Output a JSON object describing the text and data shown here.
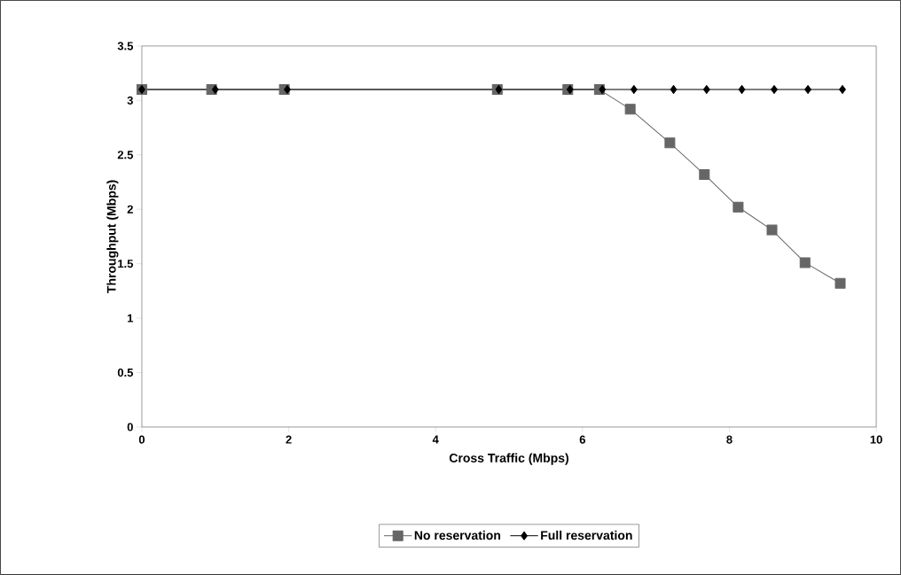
{
  "chart_data": {
    "type": "line",
    "xlabel": "Cross Traffic (Mbps)",
    "ylabel": "Throughput (Mbps)",
    "xlim": [
      0,
      10
    ],
    "xticks": [
      0,
      2,
      4,
      6,
      8,
      10
    ],
    "ylim": [
      0,
      3.5
    ],
    "yticks": [
      0,
      0.5,
      1,
      1.5,
      2,
      2.5,
      3,
      3.5
    ],
    "grid": false,
    "legend": "bottom",
    "line_style": "solid",
    "series": [
      {
        "name": "No reservation",
        "color": "#666666",
        "marker": "square",
        "x": [
          0,
          0.95,
          1.94,
          4.84,
          5.8,
          6.23,
          6.65,
          7.19,
          7.66,
          8.12,
          8.58,
          9.03,
          9.51
        ],
        "values": [
          3.1,
          3.1,
          3.1,
          3.1,
          3.1,
          3.1,
          2.92,
          2.61,
          2.32,
          2.02,
          1.81,
          1.51,
          1.32
        ]
      },
      {
        "name": "Full reservation",
        "color": "#000000",
        "marker": "diamond",
        "x": [
          0,
          1.0,
          1.98,
          4.86,
          5.83,
          6.27,
          6.7,
          7.24,
          7.69,
          8.17,
          8.61,
          9.07,
          9.54
        ],
        "values": [
          3.1,
          3.1,
          3.1,
          3.1,
          3.1,
          3.1,
          3.1,
          3.1,
          3.1,
          3.1,
          3.1,
          3.1,
          3.1
        ]
      }
    ]
  }
}
